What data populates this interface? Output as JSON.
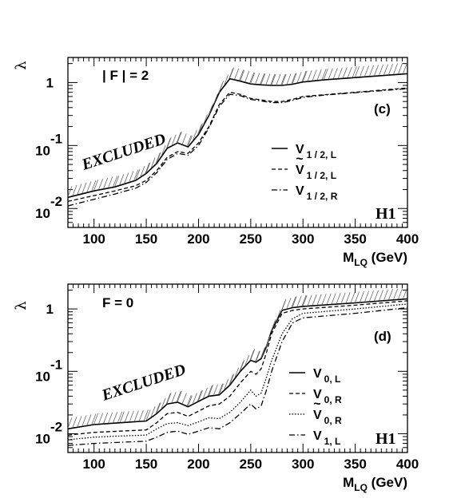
{
  "chart_data": [
    {
      "type": "line",
      "panel_tag": "(c)",
      "condition_label": "| F | = 2",
      "excluded_label": "EXCLUDED",
      "experiment_label": "H1",
      "xlabel": "M",
      "xlabel_sub": "LQ",
      "xlabel_unit": " (GeV)",
      "ylabel": "λ",
      "xlim": [
        75,
        400
      ],
      "ylim": [
        0.005,
        2.5
      ],
      "yscale": "log",
      "x_ticks": [
        100,
        150,
        200,
        250,
        300,
        350,
        400
      ],
      "y_ticks": [
        {
          "value": 1,
          "base": "1",
          "exp": ""
        },
        {
          "value": 0.1,
          "base": "10",
          "exp": "-1"
        },
        {
          "value": 0.01,
          "base": "10",
          "exp": "-2"
        }
      ],
      "legend_position": "right",
      "series": [
        {
          "name": "V",
          "tilde": false,
          "sub": "1 / 2, L",
          "style": "solid",
          "x": [
            75,
            100,
            120,
            140,
            150,
            160,
            170,
            180,
            190,
            200,
            210,
            220,
            230,
            240,
            250,
            260,
            270,
            280,
            290,
            300,
            320,
            350,
            400
          ],
          "y": [
            0.015,
            0.019,
            0.022,
            0.028,
            0.036,
            0.052,
            0.09,
            0.11,
            0.095,
            0.15,
            0.3,
            0.7,
            1.15,
            1.05,
            0.95,
            0.92,
            0.9,
            0.9,
            0.94,
            1.02,
            1.1,
            1.2,
            1.38
          ],
          "hatched": true
        },
        {
          "name": "V",
          "tilde": true,
          "sub": "1 / 2, L",
          "style": "dashed",
          "x": [
            75,
            100,
            120,
            140,
            150,
            160,
            170,
            180,
            190,
            200,
            210,
            220,
            230,
            240,
            250,
            260,
            270,
            280,
            290,
            300,
            320,
            350,
            400
          ],
          "y": [
            0.013,
            0.016,
            0.019,
            0.023,
            0.028,
            0.04,
            0.065,
            0.08,
            0.075,
            0.11,
            0.2,
            0.45,
            0.7,
            0.65,
            0.56,
            0.53,
            0.5,
            0.5,
            0.54,
            0.6,
            0.64,
            0.7,
            0.82
          ],
          "hatched": false
        },
        {
          "name": "V",
          "tilde": false,
          "sub": "1 / 2, R",
          "style": "dashdot",
          "x": [
            75,
            100,
            120,
            140,
            150,
            160,
            170,
            180,
            190,
            200,
            210,
            220,
            230,
            240,
            250,
            260,
            270,
            280,
            290,
            300,
            320,
            350,
            400
          ],
          "y": [
            0.011,
            0.014,
            0.017,
            0.021,
            0.026,
            0.037,
            0.06,
            0.075,
            0.07,
            0.1,
            0.19,
            0.42,
            0.65,
            0.62,
            0.54,
            0.51,
            0.48,
            0.48,
            0.52,
            0.58,
            0.63,
            0.69,
            0.8
          ],
          "hatched": false
        }
      ]
    },
    {
      "type": "line",
      "panel_tag": "(d)",
      "condition_label": "F = 0",
      "excluded_label": "EXCLUDED",
      "experiment_label": "H1",
      "xlabel": "M",
      "xlabel_sub": "LQ",
      "xlabel_unit": " (GeV)",
      "ylabel": "λ",
      "xlim": [
        75,
        400
      ],
      "ylim": [
        0.005,
        2.5
      ],
      "yscale": "log",
      "x_ticks": [
        100,
        150,
        200,
        250,
        300,
        350,
        400
      ],
      "y_ticks": [
        {
          "value": 1,
          "base": "1",
          "exp": ""
        },
        {
          "value": 0.1,
          "base": "10",
          "exp": "-1"
        },
        {
          "value": 0.01,
          "base": "10",
          "exp": "-2"
        }
      ],
      "legend_position": "right",
      "series": [
        {
          "name": "V",
          "tilde": false,
          "sub": "0, L",
          "style": "solid",
          "x": [
            75,
            100,
            125,
            150,
            160,
            170,
            180,
            190,
            200,
            210,
            220,
            230,
            240,
            250,
            255,
            260,
            265,
            270,
            280,
            290,
            300,
            350,
            400
          ],
          "y": [
            0.012,
            0.014,
            0.015,
            0.016,
            0.021,
            0.03,
            0.032,
            0.027,
            0.033,
            0.04,
            0.042,
            0.06,
            0.1,
            0.15,
            0.14,
            0.16,
            0.25,
            0.45,
            0.95,
            1.05,
            1.1,
            1.25,
            1.45
          ],
          "hatched": true
        },
        {
          "name": "V",
          "tilde": false,
          "sub": "0, R",
          "style": "dashed",
          "x": [
            75,
            100,
            125,
            150,
            160,
            170,
            180,
            190,
            200,
            210,
            220,
            230,
            240,
            250,
            255,
            260,
            265,
            270,
            280,
            290,
            300,
            350,
            400
          ],
          "y": [
            0.0095,
            0.0105,
            0.011,
            0.0115,
            0.015,
            0.021,
            0.022,
            0.019,
            0.023,
            0.028,
            0.03,
            0.04,
            0.065,
            0.1,
            0.09,
            0.11,
            0.2,
            0.4,
            0.85,
            0.95,
            1.0,
            1.15,
            1.35
          ],
          "hatched": false
        },
        {
          "name": "V",
          "tilde": true,
          "sub": "0, R",
          "style": "dotted",
          "x": [
            75,
            100,
            125,
            150,
            160,
            170,
            180,
            190,
            200,
            210,
            220,
            230,
            240,
            250,
            255,
            260,
            265,
            270,
            280,
            290,
            300,
            350,
            400
          ],
          "y": [
            0.008,
            0.0088,
            0.0092,
            0.0095,
            0.012,
            0.0145,
            0.015,
            0.0135,
            0.0155,
            0.018,
            0.0175,
            0.022,
            0.032,
            0.05,
            0.04,
            0.045,
            0.08,
            0.15,
            0.4,
            0.7,
            0.85,
            1.0,
            1.2
          ],
          "hatched": false
        },
        {
          "name": "V",
          "tilde": false,
          "sub": "1, L",
          "style": "dashdot",
          "x": [
            75,
            100,
            125,
            150,
            160,
            170,
            180,
            190,
            200,
            210,
            220,
            230,
            240,
            250,
            255,
            260,
            265,
            270,
            280,
            290,
            300,
            350,
            400
          ],
          "y": [
            0.0065,
            0.007,
            0.0073,
            0.0076,
            0.0088,
            0.0105,
            0.011,
            0.0098,
            0.011,
            0.0125,
            0.012,
            0.015,
            0.021,
            0.03,
            0.025,
            0.028,
            0.05,
            0.1,
            0.3,
            0.6,
            0.72,
            0.85,
            1.05
          ],
          "hatched": false
        }
      ]
    }
  ]
}
